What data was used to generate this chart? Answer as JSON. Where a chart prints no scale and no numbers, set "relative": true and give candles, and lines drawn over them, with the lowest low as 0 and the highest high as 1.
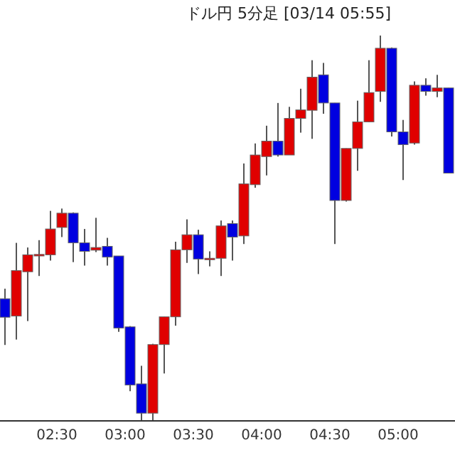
{
  "chart_data": {
    "type": "candlestick",
    "title": "ドル円 5分足 [03/14 05:55]",
    "relative": true,
    "x": [
      2.125,
      2.2083,
      2.2917,
      2.375,
      2.4583,
      2.5417,
      2.625,
      2.7083,
      2.7917,
      2.875,
      2.9583,
      3.0417,
      3.125,
      3.2083,
      3.2917,
      3.375,
      3.4583,
      3.5417,
      3.625,
      3.7083,
      3.7917,
      3.875,
      3.9583,
      4.0417,
      4.125,
      4.2083,
      4.2917,
      4.375,
      4.4583,
      4.5417,
      4.625,
      4.7083,
      4.7917,
      4.875,
      4.9583,
      5.0417,
      5.125,
      5.2083,
      5.2917,
      5.375
    ],
    "ohlc": [
      [
        0.317,
        0.343,
        0.197,
        0.269
      ],
      [
        0.272,
        0.462,
        0.211,
        0.39
      ],
      [
        0.387,
        0.45,
        0.259,
        0.431
      ],
      [
        0.428,
        0.469,
        0.376,
        0.432
      ],
      [
        0.431,
        0.545,
        0.416,
        0.498
      ],
      [
        0.502,
        0.551,
        0.477,
        0.539
      ],
      [
        0.539,
        0.541,
        0.412,
        0.462
      ],
      [
        0.462,
        0.498,
        0.403,
        0.44
      ],
      [
        0.443,
        0.527,
        0.438,
        0.45
      ],
      [
        0.453,
        0.475,
        0.403,
        0.425
      ],
      [
        0.428,
        0.428,
        0.231,
        0.241
      ],
      [
        0.244,
        0.246,
        0.077,
        0.093
      ],
      [
        0.096,
        0.143,
        0,
        0.02
      ],
      [
        0.02,
        0.2,
        0.001,
        0.198
      ],
      [
        0.198,
        0.27,
        0.123,
        0.27
      ],
      [
        0.27,
        0.465,
        0.247,
        0.444
      ],
      [
        0.444,
        0.523,
        0.41,
        0.483
      ],
      [
        0.483,
        0.496,
        0.381,
        0.42
      ],
      [
        0.422,
        0.44,
        0.401,
        0.422
      ],
      [
        0.422,
        0.52,
        0.376,
        0.506
      ],
      [
        0.512,
        0.52,
        0.416,
        0.477
      ],
      [
        0.48,
        0.668,
        0.459,
        0.615
      ],
      [
        0.613,
        0.72,
        0.605,
        0.69
      ],
      [
        0.686,
        0.766,
        0.637,
        0.726
      ],
      [
        0.726,
        0.825,
        0.686,
        0.69
      ],
      [
        0.69,
        0.815,
        0.69,
        0.785
      ],
      [
        0.785,
        0.862,
        0.748,
        0.807
      ],
      [
        0.806,
        0.936,
        0.732,
        0.892
      ],
      [
        0.898,
        0.929,
        0.797,
        0.825
      ],
      [
        0.825,
        0.825,
        0.459,
        0.572
      ],
      [
        0.572,
        0.707,
        0.569,
        0.707
      ],
      [
        0.707,
        0.831,
        0.649,
        0.776
      ],
      [
        0.776,
        0.936,
        0.775,
        0.852
      ],
      [
        0.855,
        1,
        0.828,
        0.967
      ],
      [
        0.967,
        0.969,
        0.738,
        0.75
      ],
      [
        0.75,
        0.781,
        0.625,
        0.717
      ],
      [
        0.721,
        0.881,
        0.717,
        0.871
      ],
      [
        0.871,
        0.889,
        0.844,
        0.855
      ],
      [
        0.855,
        0.898,
        0.84,
        0.864
      ],
      [
        0.864,
        0.864,
        0.643,
        0.643
      ]
    ],
    "colors": [
      "#0000e0",
      "#e00000",
      "#e00000",
      "#e00000",
      "#e00000",
      "#e00000",
      "#0000e0",
      "#0000e0",
      "#e00000",
      "#0000e0",
      "#0000e0",
      "#0000e0",
      "#0000e0",
      "#e00000",
      "#e00000",
      "#e00000",
      "#e00000",
      "#0000e0",
      "#e00000",
      "#e00000",
      "#0000e0",
      "#e00000",
      "#e00000",
      "#e00000",
      "#0000e0",
      "#e00000",
      "#e00000",
      "#e00000",
      "#0000e0",
      "#0000e0",
      "#e00000",
      "#e00000",
      "#e00000",
      "#e00000",
      "#0000e0",
      "#0000e0",
      "#e00000",
      "#0000e0",
      "#e00000",
      "#0000e0"
    ],
    "xlim": [
      2.0833,
      5.4167
    ],
    "xticks": [
      {
        "value": 2.5,
        "label": "02:30"
      },
      {
        "value": 3,
        "label": "03:00"
      },
      {
        "value": 3.5,
        "label": "03:30"
      },
      {
        "value": 4,
        "label": "04:00"
      },
      {
        "value": 4.5,
        "label": "04:30"
      },
      {
        "value": 5,
        "label": "05:00"
      }
    ]
  }
}
